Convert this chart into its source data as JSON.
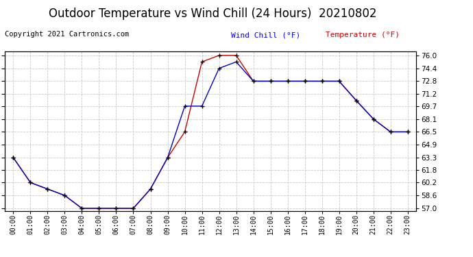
{
  "title": "Outdoor Temperature vs Wind Chill (24 Hours)  20210802",
  "copyright": "Copyright 2021 Cartronics.com",
  "legend_wind_chill": "Wind Chill (°F)",
  "legend_temperature": "Temperature (°F)",
  "hours": [
    "00:00",
    "01:00",
    "02:00",
    "03:00",
    "04:00",
    "05:00",
    "06:00",
    "07:00",
    "08:00",
    "09:00",
    "10:00",
    "11:00",
    "12:00",
    "13:00",
    "14:00",
    "15:00",
    "16:00",
    "17:00",
    "18:00",
    "19:00",
    "20:00",
    "21:00",
    "22:00",
    "23:00"
  ],
  "temperature": [
    63.3,
    60.2,
    59.4,
    58.6,
    57.0,
    57.0,
    57.0,
    57.0,
    59.4,
    63.3,
    66.5,
    75.2,
    76.0,
    76.0,
    72.8,
    72.8,
    72.8,
    72.8,
    72.8,
    72.8,
    70.4,
    68.1,
    66.5,
    66.5
  ],
  "wind_chill": [
    63.3,
    60.2,
    59.4,
    58.6,
    57.0,
    57.0,
    57.0,
    57.0,
    59.4,
    63.3,
    69.7,
    69.7,
    74.4,
    75.2,
    72.8,
    72.8,
    72.8,
    72.8,
    72.8,
    72.8,
    70.4,
    68.1,
    66.5,
    66.5
  ],
  "ylim_min": 57.0,
  "ylim_max": 76.0,
  "yticks": [
    57.0,
    58.6,
    60.2,
    61.8,
    63.3,
    64.9,
    66.5,
    68.1,
    69.7,
    71.2,
    72.8,
    74.4,
    76.0
  ],
  "bg_color": "#ffffff",
  "plot_bg_color": "#ffffff",
  "grid_color": "#c8c8c8",
  "temp_color": "#cc0000",
  "wind_chill_color": "#0000cc",
  "marker_color": "#000000",
  "title_fontsize": 12,
  "copyright_fontsize": 7.5,
  "legend_wind_chill_color": "#0000ff",
  "legend_temp_color": "#cc0000",
  "tick_fontsize": 7.5,
  "xtick_fontsize": 7.0
}
